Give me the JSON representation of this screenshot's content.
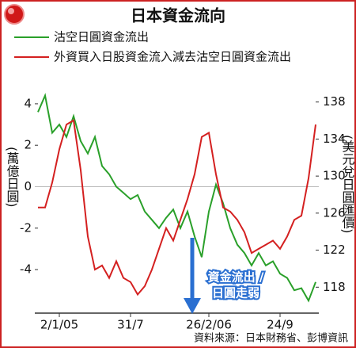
{
  "chart_data": {
    "type": "line",
    "title": "日本資金流向",
    "categories": [
      null,
      null,
      null,
      "2/1/05",
      null,
      null,
      null,
      null,
      null,
      null,
      null,
      null,
      null,
      "31/7",
      null,
      null,
      null,
      null,
      null,
      null,
      null,
      null,
      null,
      null,
      "26/2/06",
      null,
      null,
      null,
      null,
      null,
      null,
      null,
      null,
      null,
      "24/9",
      null,
      null,
      null,
      null,
      null
    ],
    "series": [
      {
        "name": "沽空日圓資金流出",
        "color": "#2aa02a",
        "values": [
          3.6,
          4.4,
          2.6,
          3.0,
          2.4,
          3.4,
          2.2,
          1.6,
          2.4,
          1.0,
          0.6,
          0.0,
          -0.3,
          -0.6,
          -0.4,
          -1.2,
          -1.6,
          -2.0,
          -1.5,
          -1.1,
          -2.0,
          -1.2,
          -2.4,
          -3.4,
          -1.2,
          0.1,
          -0.8,
          -2.0,
          -2.8,
          -3.2,
          -3.8,
          -3.2,
          -3.8,
          -3.6,
          -4.2,
          -4.4,
          -5.0,
          -4.9,
          -5.5,
          -4.6
        ]
      },
      {
        "name": "外資買入日股資金流入減去沽空日圓資金流出",
        "color": "#d42020",
        "values": [
          -1.0,
          -1.0,
          0.2,
          1.8,
          3.0,
          3.2,
          0.8,
          -2.4,
          -4.0,
          -3.8,
          -4.4,
          -3.6,
          -4.4,
          -4.6,
          -5.2,
          -4.8,
          -4.0,
          -3.0,
          -2.0,
          -2.6,
          -1.6,
          -0.6,
          0.6,
          2.4,
          2.6,
          0.6,
          -1.0,
          -1.2,
          -1.6,
          -2.2,
          -3.2,
          -3.0,
          -2.8,
          -2.6,
          -3.0,
          -2.4,
          -1.6,
          -1.4,
          0.4,
          3.0
        ]
      }
    ],
    "ylabel": "(萬億日圓)",
    "y2label": "(美元兌日圓匯價)",
    "ylim": [
      -6.1,
      4.8
    ],
    "yticks": [
      4,
      2,
      0,
      -2,
      -4
    ],
    "y2lim": [
      115.2,
      139.6
    ],
    "y2ticks": [
      138,
      134,
      130,
      126,
      122,
      118
    ],
    "annotation": [
      "資金流出 /",
      "日圓走弱"
    ],
    "source": "資料來源：日本財務省、彭博資訊"
  }
}
